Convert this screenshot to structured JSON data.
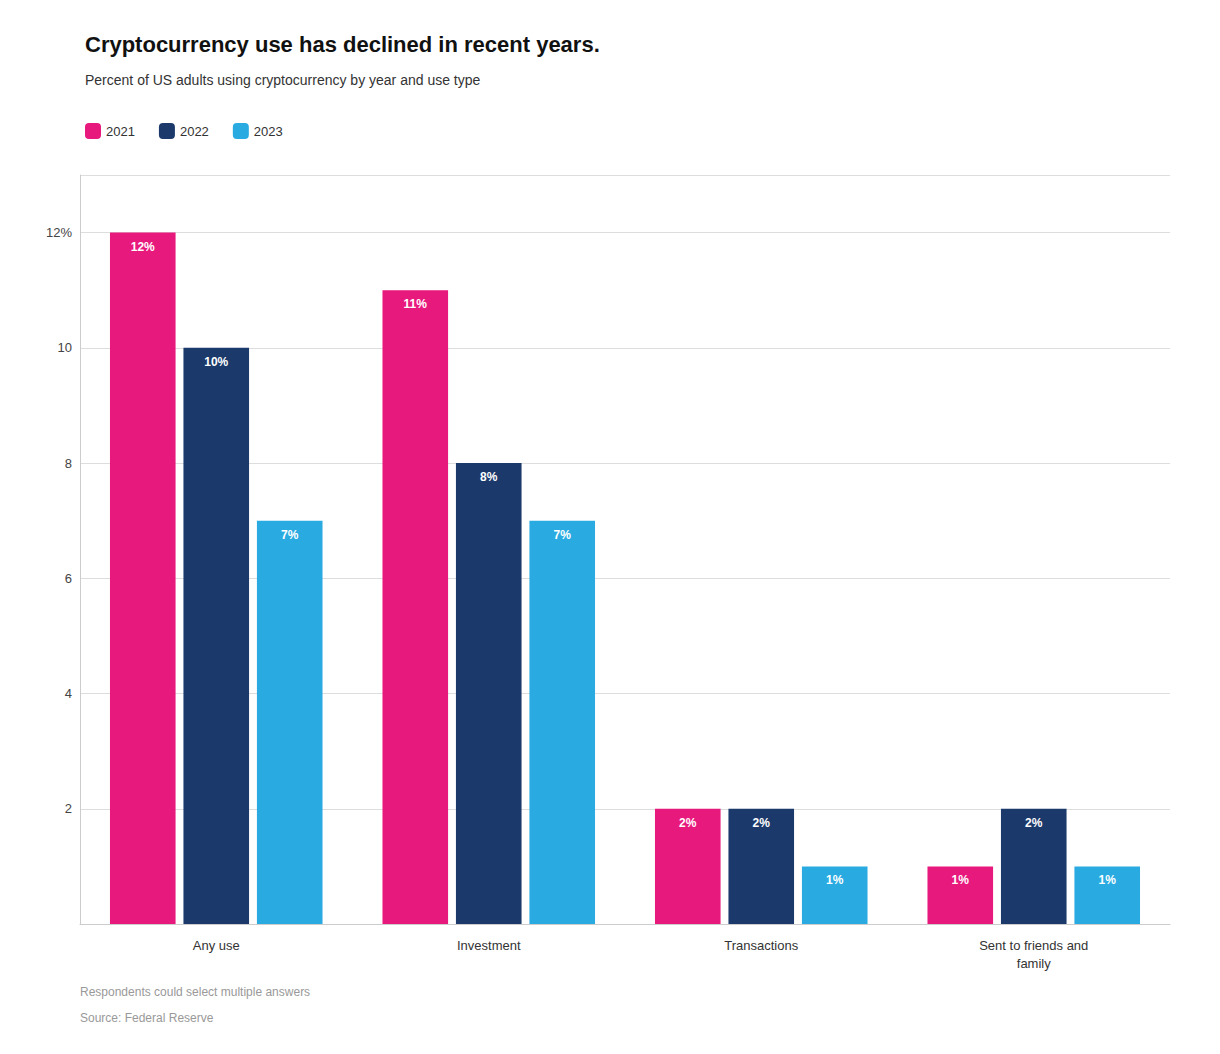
{
  "chart_data": {
    "type": "bar",
    "title": "Cryptocurrency use has declined in recent years.",
    "subtitle": "Percent of US adults using cryptocurrency by year and use type",
    "categories": [
      "Any use",
      "Investment",
      "Transactions",
      "Sent to friends and\nfamily"
    ],
    "series": [
      {
        "name": "2021",
        "color": "#E8197D",
        "values": [
          12,
          11,
          2,
          1
        ],
        "value_labels": [
          "12%",
          "11%",
          "2%",
          "1%"
        ]
      },
      {
        "name": "2022",
        "color": "#1B3A6B",
        "values": [
          10,
          8,
          2,
          2
        ],
        "value_labels": [
          "10%",
          "8%",
          "2%",
          "2%"
        ]
      },
      {
        "name": "2023",
        "color": "#29ABE2",
        "values": [
          7,
          7,
          1,
          1
        ],
        "value_labels": [
          "7%",
          "7%",
          "1%",
          "1%"
        ]
      }
    ],
    "ylim": [
      0,
      13
    ],
    "yticks": [
      {
        "value": 0,
        "label": ""
      },
      2,
      4,
      6,
      8,
      10,
      {
        "value": 12,
        "label": "12%"
      }
    ],
    "grid": true,
    "legend": "top",
    "data_labels": true,
    "annotations": [
      "Respondents could select multiple answers",
      "Source: Federal Reserve"
    ]
  }
}
